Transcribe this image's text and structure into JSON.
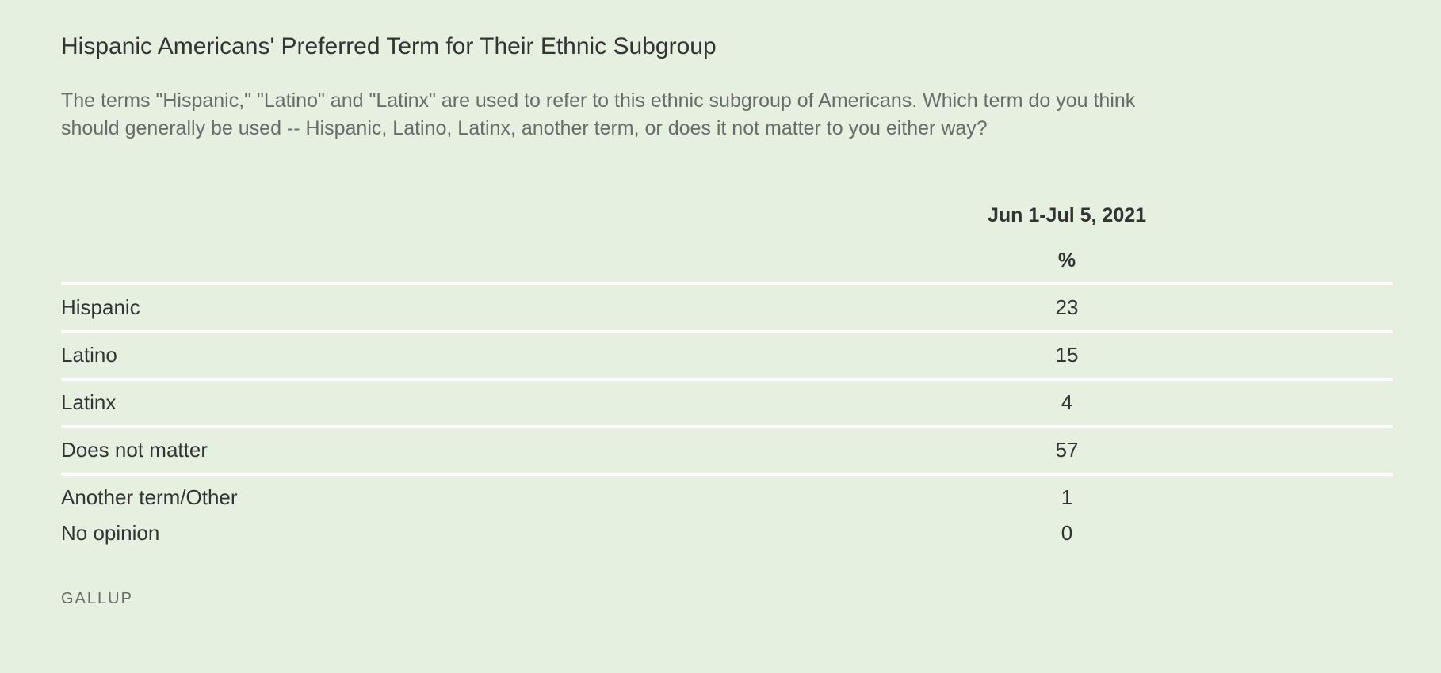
{
  "header": {
    "title": "Hispanic Americans' Preferred Term for Their Ethnic Subgroup",
    "question": "The terms \"Hispanic,\" \"Latino\" and \"Latinx\" are used to refer to this ethnic subgroup of Americans. Which term do you think should generally be used -- Hispanic, Latino, Latinx, another term, or does it not matter to you either way?"
  },
  "table": {
    "column": "Jun 1-Jul 5, 2021",
    "unit": "%",
    "rows": [
      {
        "label": "Hispanic",
        "value": 23
      },
      {
        "label": "Latino",
        "value": 15
      },
      {
        "label": "Latinx",
        "value": 4
      },
      {
        "label": "Does not matter",
        "value": 57
      },
      {
        "label": "Another term/Other",
        "value": 1
      },
      {
        "label": "No opinion",
        "value": 0
      }
    ]
  },
  "footer": {
    "source": "GALLUP"
  }
}
